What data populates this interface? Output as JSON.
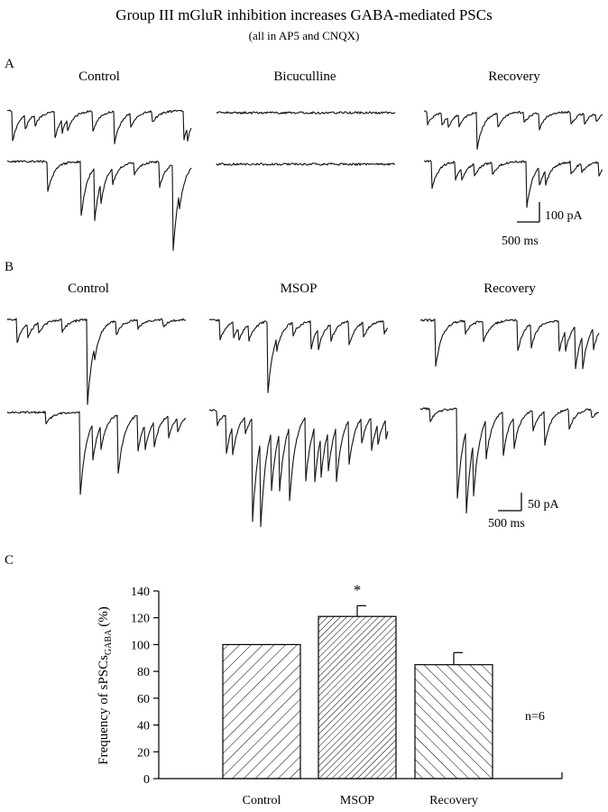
{
  "title": "Group III mGluR inhibition increases GABA-mediated PSCs",
  "subtitle": "(all in AP5 and CNQX)",
  "panel_a": {
    "letter": "A",
    "conditions": [
      "Control",
      "Bicuculline",
      "Recovery"
    ],
    "scale_current": "100 pA",
    "scale_time": "500 ms"
  },
  "panel_b": {
    "letter": "B",
    "conditions": [
      "Control",
      "MSOP",
      "Recovery"
    ],
    "scale_current": "50 pA",
    "scale_time": "500 ms"
  },
  "panel_c": {
    "letter": "C",
    "n_label": "n=6",
    "ylabel_main": "Frequency of sPSCs",
    "ylabel_sub": "GABA",
    "ylabel_unit": "(%)",
    "significance_mark": "*"
  },
  "chart_data": {
    "type": "bar",
    "categories": [
      "Control",
      "MSOP",
      "Recovery"
    ],
    "values": [
      100,
      121,
      85
    ],
    "errors": [
      0,
      8,
      9
    ],
    "ylim": [
      0,
      140
    ],
    "yticks": [
      0,
      20,
      40,
      60,
      80,
      100,
      120,
      140
    ],
    "xlabel": "",
    "ylabel": "Frequency of sPSCsGABA (%)",
    "fill_patterns": [
      "diagonal-hatch",
      "dense-diagonal-hatch",
      "reverse-diagonal-hatch"
    ],
    "grid": false,
    "legend": "none"
  }
}
